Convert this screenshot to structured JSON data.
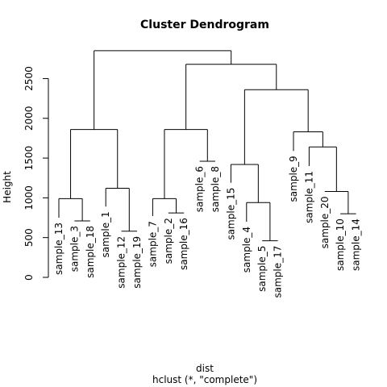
{
  "chart_data": {
    "type": "dendrogram",
    "title": "Cluster Dendrogram",
    "xlabel": "dist",
    "sublabel": "hclust (*, \"complete\")",
    "ylabel": "Height",
    "ylim": [
      0,
      2900
    ],
    "yticks": [
      0,
      500,
      1000,
      1500,
      2000,
      2500
    ],
    "leaves": [
      "sample_13",
      "sample_3",
      "sample_18",
      "sample_1",
      "sample_12",
      "sample_19",
      "sample_7",
      "sample_2",
      "sample_16",
      "sample_6",
      "sample_8",
      "sample_15",
      "sample_4",
      "sample_5",
      "sample_17",
      "sample_9",
      "sample_11",
      "sample_20",
      "sample_10",
      "sample_14"
    ],
    "leaf_heights": [
      750,
      710,
      710,
      890,
      580,
      580,
      770,
      810,
      810,
      1460,
      1460,
      1190,
      700,
      460,
      460,
      1590,
      1400,
      1080,
      800,
      800
    ],
    "merges": [
      {
        "a": "L1",
        "b": "L2",
        "height": 710
      },
      {
        "a": "L0",
        "b": "M0",
        "height": 990
      },
      {
        "a": "L4",
        "b": "L5",
        "height": 580
      },
      {
        "a": "L3",
        "b": "M2",
        "height": 1120
      },
      {
        "a": "M1",
        "b": "M3",
        "height": 1860
      },
      {
        "a": "L7",
        "b": "L8",
        "height": 810
      },
      {
        "a": "L6",
        "b": "M5",
        "height": 990
      },
      {
        "a": "L9",
        "b": "L10",
        "height": 1460
      },
      {
        "a": "M6",
        "b": "M7",
        "height": 1860
      },
      {
        "a": "L13",
        "b": "L14",
        "height": 460
      },
      {
        "a": "L12",
        "b": "M9",
        "height": 940
      },
      {
        "a": "L11",
        "b": "M10",
        "height": 1420
      },
      {
        "a": "L18",
        "b": "L19",
        "height": 800
      },
      {
        "a": "L17",
        "b": "M12",
        "height": 1080
      },
      {
        "a": "L16",
        "b": "M13",
        "height": 1640
      },
      {
        "a": "L15",
        "b": "M14",
        "height": 1830
      },
      {
        "a": "M11",
        "b": "M15",
        "height": 2360
      },
      {
        "a": "M8",
        "b": "M16",
        "height": 2680
      },
      {
        "a": "M4",
        "b": "M17",
        "height": 2850
      }
    ]
  }
}
